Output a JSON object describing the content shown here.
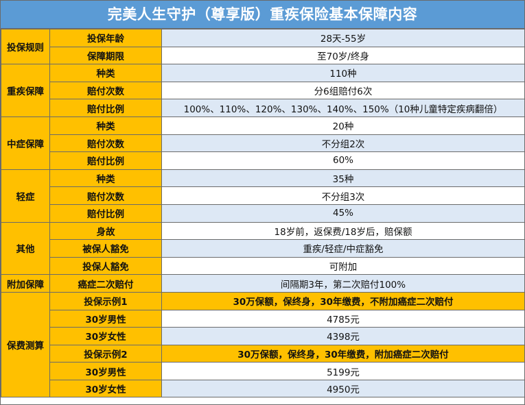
{
  "title": "完美人生守护（尊享版）重疾保险基本保障内容",
  "sections": [
    {
      "category": "投保规则",
      "rows": [
        {
          "label": "投保年龄",
          "value": "28天-55岁"
        },
        {
          "label": "保障期限",
          "value": "至70岁/终身"
        }
      ]
    },
    {
      "category": "重疾保障",
      "rows": [
        {
          "label": "种类",
          "value": "110种"
        },
        {
          "label": "赔付次数",
          "value": "分6组赔付6次"
        },
        {
          "label": "赔付比例",
          "value": "100%、110%、120%、130%、140%、150%（10种儿童特定疾病翻倍）"
        }
      ]
    },
    {
      "category": "中症保障",
      "rows": [
        {
          "label": "种类",
          "value": "20种"
        },
        {
          "label": "赔付次数",
          "value": "不分组2次"
        },
        {
          "label": "赔付比例",
          "value": "60%"
        }
      ]
    },
    {
      "category": "轻症",
      "rows": [
        {
          "label": "种类",
          "value": "35种"
        },
        {
          "label": "赔付次数",
          "value": "不分组3次"
        },
        {
          "label": "赔付比例",
          "value": "45%"
        }
      ]
    },
    {
      "category": "其他",
      "rows": [
        {
          "label": "身故",
          "value": "18岁前，返保费/18岁后，赔保额"
        },
        {
          "label": "被保人豁免",
          "value": "重疾/轻症/中症豁免"
        },
        {
          "label": "投保人豁免",
          "value": "可附加"
        }
      ]
    },
    {
      "category": "附加保障",
      "rows": [
        {
          "label": "癌症二次赔付",
          "value": "间隔期3年，第二次赔付100%"
        }
      ]
    },
    {
      "category": "保费测算",
      "rows": [
        {
          "label": "投保示例1",
          "value": "30万保额，保终身，30年缴费，不附加癌症二次赔付",
          "highlight": true
        },
        {
          "label": "30岁男性",
          "value": "4785元"
        },
        {
          "label": "30岁女性",
          "value": "4398元"
        },
        {
          "label": "投保示例2",
          "value": "30万保额，保终身，30年缴费，附加癌症二次赔付",
          "highlight": true
        },
        {
          "label": "30岁男性",
          "value": "5199元"
        },
        {
          "label": "30岁女性",
          "value": "4950元"
        }
      ]
    }
  ]
}
